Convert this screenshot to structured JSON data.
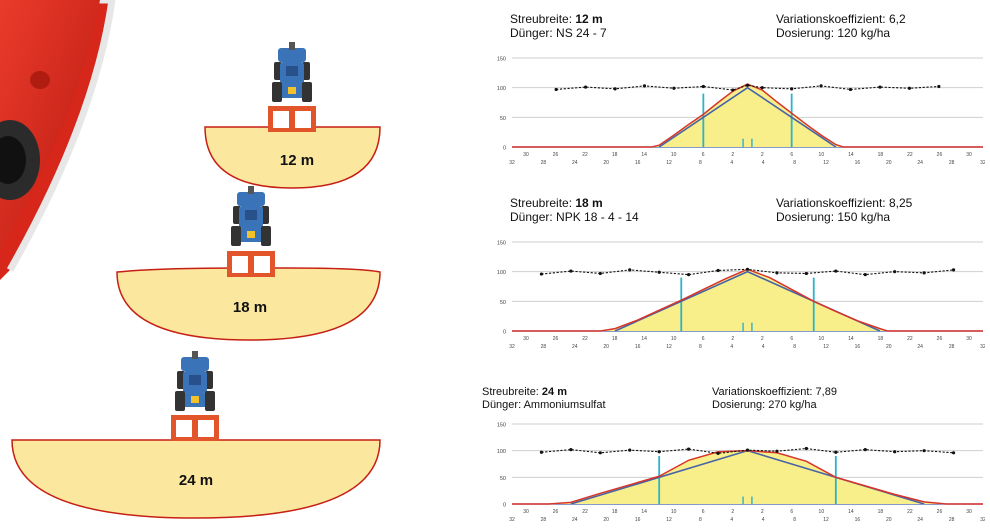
{
  "page": {
    "brand_color": "#d7261a",
    "fan_fill": "#fbe79e",
    "fan_stroke": "#c61f14",
    "tractor_color": "#3a73b8",
    "hopper_color": "#e2552a",
    "spreaders": [
      {
        "label": "12 m"
      },
      {
        "label": "18 m"
      },
      {
        "label": "24 m"
      }
    ]
  },
  "chart_data": [
    {
      "type": "line",
      "header": {
        "width_label": "Streubreite: ",
        "width_value": "12 m",
        "fert_label": "Dünger: NS 24 - 7",
        "cv_label": "Variationskoeffizient: 6,2",
        "dose_label": "Dosierung: 120 kg/ha"
      },
      "ylim": [
        0,
        150
      ],
      "yticks": [
        "0",
        "50",
        "100",
        "150"
      ],
      "xlim": [
        -32,
        32
      ],
      "x_ticks_top": [
        "30",
        "26",
        "22",
        "18",
        "14",
        "10",
        "6",
        "2",
        "2",
        "6",
        "10",
        "14",
        "18",
        "22",
        "26",
        "30"
      ],
      "x_ticks_bottom": [
        "32",
        "28",
        "24",
        "20",
        "16",
        "12",
        "8",
        "4",
        "4",
        "8",
        "12",
        "16",
        "20",
        "24",
        "28",
        "32"
      ],
      "work_width_markers": [
        -6,
        6
      ],
      "triangle": {
        "x": [
          -12,
          0,
          12
        ],
        "y": [
          0,
          100,
          0
        ]
      },
      "measured": {
        "x": [
          -32,
          -13,
          -12,
          -10,
          -8,
          -6,
          -4,
          -2,
          0,
          2,
          4,
          6,
          8,
          10,
          12,
          13,
          32
        ],
        "y": [
          0,
          0,
          3,
          20,
          38,
          55,
          75,
          94,
          106,
          96,
          76,
          57,
          38,
          20,
          4,
          0,
          0
        ]
      },
      "overlap": {
        "x": [
          -26,
          -22,
          -18,
          -14,
          -10,
          -6,
          -2,
          0,
          2,
          6,
          10,
          14,
          18,
          22,
          26
        ],
        "y": [
          97,
          101,
          98,
          103,
          99,
          102,
          96,
          104,
          100,
          98,
          103,
          97,
          101,
          99,
          102
        ]
      }
    },
    {
      "type": "line",
      "header": {
        "width_label": "Streubreite: ",
        "width_value": "18 m",
        "fert_label": "Dünger: NPK 18 - 4 - 14",
        "cv_label": "Variationskoeffizient: 8,25",
        "dose_label": "Dosierung: 150 kg/ha"
      },
      "ylim": [
        0,
        150
      ],
      "yticks": [
        "0",
        "50",
        "100",
        "150"
      ],
      "xlim": [
        -32,
        32
      ],
      "x_ticks_top": [
        "30",
        "26",
        "22",
        "18",
        "14",
        "10",
        "6",
        "2",
        "2",
        "6",
        "10",
        "14",
        "18",
        "22",
        "26",
        "30"
      ],
      "x_ticks_bottom": [
        "32",
        "28",
        "24",
        "20",
        "16",
        "12",
        "8",
        "4",
        "4",
        "8",
        "12",
        "16",
        "20",
        "24",
        "28",
        "32"
      ],
      "work_width_markers": [
        -9,
        9
      ],
      "triangle": {
        "x": [
          -18,
          0,
          18
        ],
        "y": [
          0,
          100,
          0
        ]
      },
      "measured": {
        "x": [
          -32,
          -20,
          -18,
          -15,
          -12,
          -9,
          -6,
          -3,
          0,
          3,
          6,
          9,
          12,
          15,
          18,
          19,
          32
        ],
        "y": [
          0,
          0,
          4,
          18,
          35,
          52,
          70,
          88,
          104,
          90,
          70,
          50,
          33,
          17,
          4,
          0,
          0
        ]
      },
      "overlap": {
        "x": [
          -28,
          -24,
          -20,
          -16,
          -12,
          -8,
          -4,
          0,
          4,
          8,
          12,
          16,
          20,
          24,
          28
        ],
        "y": [
          96,
          101,
          97,
          103,
          99,
          95,
          102,
          104,
          98,
          97,
          101,
          95,
          100,
          98,
          103
        ]
      }
    },
    {
      "type": "line",
      "header": {
        "width_label": "Streubreite: ",
        "width_value": "24 m",
        "fert_label": "Dünger: Ammoniumsulfat",
        "cv_label": "Variationskoeffizient: 7,89",
        "dose_label": "Dosierung: 270 kg/ha"
      },
      "ylim": [
        0,
        150
      ],
      "yticks": [
        "0",
        "50",
        "100",
        "150"
      ],
      "xlim": [
        -32,
        32
      ],
      "x_ticks_top": [
        "30",
        "26",
        "22",
        "18",
        "14",
        "10",
        "6",
        "2",
        "2",
        "6",
        "10",
        "14",
        "18",
        "22",
        "26",
        "30"
      ],
      "x_ticks_bottom": [
        "32",
        "28",
        "24",
        "20",
        "16",
        "12",
        "8",
        "4",
        "4",
        "8",
        "12",
        "16",
        "20",
        "24",
        "28",
        "32"
      ],
      "work_width_markers": [
        -12,
        12
      ],
      "triangle": {
        "x": [
          -24,
          0,
          24
        ],
        "y": [
          0,
          100,
          0
        ]
      },
      "measured": {
        "x": [
          -32,
          -27,
          -24,
          -20,
          -16,
          -12,
          -8,
          -4,
          0,
          4,
          8,
          12,
          16,
          20,
          24,
          27,
          32
        ],
        "y": [
          0,
          0,
          3,
          20,
          36,
          52,
          82,
          98,
          100,
          96,
          80,
          50,
          34,
          18,
          4,
          0,
          0
        ]
      },
      "overlap": {
        "x": [
          -28,
          -24,
          -20,
          -16,
          -12,
          -8,
          -4,
          0,
          4,
          8,
          12,
          16,
          20,
          24,
          28
        ],
        "y": [
          97,
          102,
          96,
          101,
          98,
          103,
          95,
          101,
          99,
          104,
          97,
          102,
          98,
          100,
          96
        ]
      }
    }
  ]
}
